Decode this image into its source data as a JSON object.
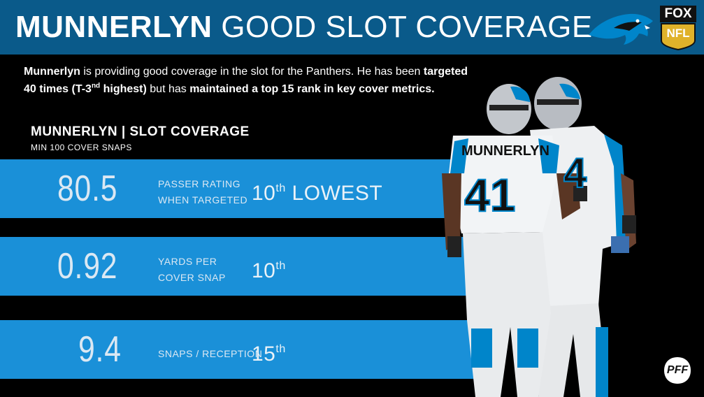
{
  "header": {
    "title_bold": "MUNNERLYN",
    "title_light": "GOOD SLOT COVERAGE",
    "logo_icon": "panthers-logo-icon",
    "network_badge_top": "FOX",
    "network_badge_bottom": "NFL"
  },
  "intro": {
    "p1_name": "Munnerlyn",
    "p1_text1": " is providing good coverage in the slot for the Panthers. He has been ",
    "p1_bold1": "targeted 40 times (T-3",
    "p1_sup": "nd",
    "p1_bold1b": " highest)",
    "p1_text2": " but has ",
    "p1_bold2": "maintained a top 15 rank in key cover metrics.",
    "p1_text3": ""
  },
  "section": {
    "title": "MUNNERLYN | SLOT COVERAGE",
    "subtitle": "MIN 100 COVER SNAPS"
  },
  "stats": [
    {
      "value": "80.5",
      "label_line1": "PASSER RATING",
      "label_line2": "WHEN TARGETED",
      "rank_num": "10",
      "rank_sup": "th",
      "rank_suffix": " LOWEST"
    },
    {
      "value": "0.92",
      "label_line1": "YARDS PER",
      "label_line2": "COVER SNAP",
      "rank_num": "10",
      "rank_sup": "th",
      "rank_suffix": ""
    },
    {
      "value": "9.4",
      "label_line1": "SNAPS / RECEPTION",
      "label_line2": "",
      "rank_num": "15",
      "rank_sup": "th",
      "rank_suffix": ""
    }
  ],
  "players": {
    "jersey_name": "MUNNERLYN",
    "jersey_number_front": "41",
    "jersey_number_back": "4"
  },
  "footer": {
    "pff_logo": "PFF"
  },
  "colors": {
    "header": "#0a5a8a",
    "band": "#1a90d8",
    "background": "#000000",
    "panther_blue": "#0085ca"
  }
}
